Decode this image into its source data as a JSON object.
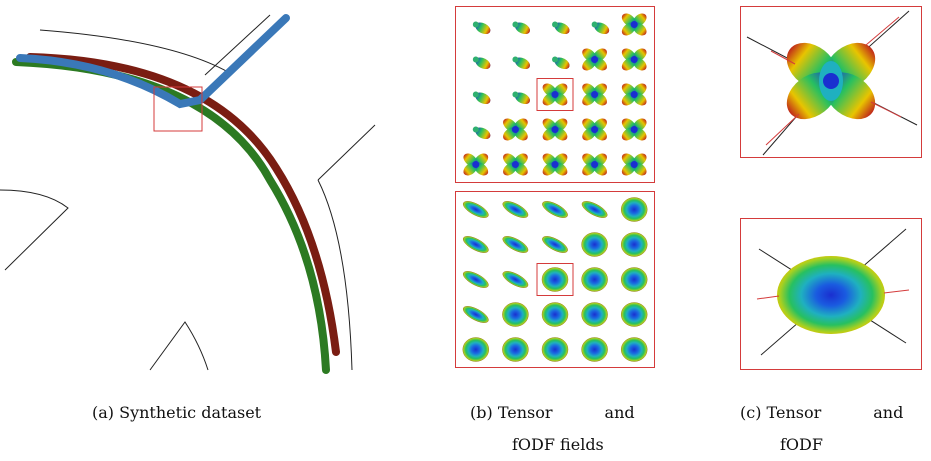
{
  "figure": {
    "panels": [
      {
        "id": "a",
        "caption_label": "(a)",
        "caption_lines": [
          "Synthetic dataset"
        ]
      },
      {
        "id": "b",
        "caption_label": "(b)",
        "caption_lines": [
          "Tensor and",
          "fODF fields"
        ]
      },
      {
        "id": "c",
        "caption_label": "(c)",
        "caption_lines": [
          "Tensor and",
          "fODF"
        ]
      }
    ],
    "grid_b_top": {
      "rows": 5,
      "cols": 5,
      "glyph_types": [
        [
          "peanut",
          "peanut",
          "peanut",
          "peanut",
          "butterfly"
        ],
        [
          "peanut",
          "peanut",
          "peanut",
          "butterfly",
          "butterfly"
        ],
        [
          "peanut",
          "peanut",
          "butterfly",
          "butterfly",
          "butterfly"
        ],
        [
          "peanut",
          "butterfly",
          "butterfly",
          "butterfly",
          "butterfly"
        ],
        [
          "butterfly",
          "butterfly",
          "butterfly",
          "butterfly",
          "butterfly"
        ]
      ]
    },
    "grid_b_bottom": {
      "rows": 5,
      "cols": 5,
      "glyph_types": [
        [
          "ellipse",
          "ellipse",
          "ellipse",
          "ellipse",
          "sphere"
        ],
        [
          "ellipse",
          "ellipse",
          "ellipse",
          "sphere",
          "sphere"
        ],
        [
          "ellipse",
          "ellipse",
          "sphere",
          "sphere",
          "sphere"
        ],
        [
          "ellipse",
          "sphere",
          "sphere",
          "sphere",
          "sphere"
        ],
        [
          "sphere",
          "sphere",
          "sphere",
          "sphere",
          "sphere"
        ]
      ]
    },
    "colors": {
      "highlight": "#d43b3b",
      "fiber_blue": "#3a78b8",
      "fiber_red": "#7a1d12",
      "fiber_green": "#2c7a22",
      "glyph_center": "#1a2fd0",
      "glyph_mid": "#27c060",
      "glyph_edge": "#e8c400",
      "glyph_rim": "#c0281a"
    }
  }
}
